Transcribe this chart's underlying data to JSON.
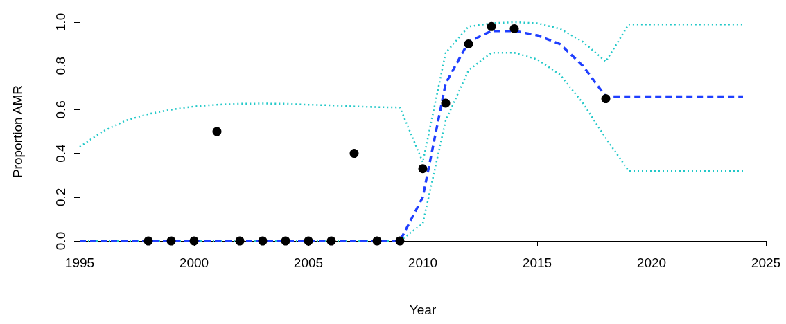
{
  "chart_data": {
    "type": "scatter",
    "xlabel": "Year",
    "ylabel": "Proportion AMR",
    "xlim": [
      1995,
      2025
    ],
    "xticks": [
      1995,
      2000,
      2005,
      2010,
      2015,
      2020,
      2025
    ],
    "ylim": [
      0,
      1
    ],
    "yticks": [
      {
        "value": 0,
        "label": "0.0"
      },
      {
        "value": 0.2,
        "label": "0.2"
      },
      {
        "value": 0.4,
        "label": "0.4"
      },
      {
        "value": 0.6,
        "label": "0.6"
      },
      {
        "value": 0.8,
        "label": "0.8"
      },
      {
        "value": 1,
        "label": "1.0"
      }
    ],
    "grid": false,
    "series": [
      {
        "type": "line",
        "line_style": "dotted",
        "marker": "none",
        "color": "#22c8c8",
        "x": [
          1995,
          1996,
          1997,
          1998,
          1999,
          2000,
          2001,
          2002,
          2003,
          2004,
          2005,
          2006,
          2007,
          2008,
          2009,
          2010,
          2011,
          2012,
          2013,
          2014,
          2015,
          2016,
          2017,
          2018,
          2019,
          2020,
          2021,
          2022,
          2023,
          2024
        ],
        "values": [
          0.43,
          0.5,
          0.55,
          0.58,
          0.6,
          0.615,
          0.623,
          0.627,
          0.628,
          0.627,
          0.623,
          0.62,
          0.615,
          0.612,
          0.61,
          0.36,
          0.86,
          0.98,
          0.995,
          1.0,
          0.995,
          0.97,
          0.91,
          0.82,
          0.99,
          0.99,
          0.99,
          0.99,
          0.99,
          0.99
        ]
      },
      {
        "type": "line",
        "line_style": "dotted",
        "marker": "none",
        "color": "#22c8c8",
        "x": [
          1995,
          1996,
          1997,
          1998,
          1999,
          2000,
          2001,
          2002,
          2003,
          2004,
          2005,
          2006,
          2007,
          2008,
          2009,
          2010,
          2011,
          2012,
          2013,
          2014,
          2015,
          2016,
          2017,
          2018,
          2019,
          2020,
          2021,
          2022,
          2023,
          2024
        ],
        "values": [
          0,
          0,
          0,
          0,
          0,
          0,
          0,
          0,
          0,
          0,
          0,
          0,
          0,
          0,
          0,
          0.08,
          0.55,
          0.78,
          0.86,
          0.86,
          0.83,
          0.76,
          0.63,
          0.47,
          0.32,
          0.32,
          0.32,
          0.32,
          0.32,
          0.32
        ]
      },
      {
        "type": "line",
        "line_style": "dashed",
        "marker": "none",
        "color": "#1f3fff",
        "x": [
          1995,
          1996,
          1997,
          1998,
          1999,
          2000,
          2001,
          2002,
          2003,
          2004,
          2005,
          2006,
          2007,
          2008,
          2009,
          2010,
          2011,
          2012,
          2013,
          2014,
          2015,
          2016,
          2017,
          2018,
          2019,
          2020,
          2021,
          2022,
          2023,
          2024
        ],
        "values": [
          0,
          0,
          0,
          0,
          0,
          0,
          0,
          0,
          0,
          0,
          0,
          0,
          0,
          0,
          0,
          0.2,
          0.72,
          0.91,
          0.96,
          0.96,
          0.94,
          0.9,
          0.8,
          0.66,
          0.66,
          0.66,
          0.66,
          0.66,
          0.66,
          0.66
        ]
      },
      {
        "marker": "circle",
        "color": "#000000",
        "x": [
          1998,
          1999,
          2000,
          2001,
          2002,
          2003,
          2004,
          2005,
          2006,
          2007,
          2008,
          2009,
          2010,
          2011,
          2012,
          2013,
          2014,
          2018
        ],
        "values": [
          0,
          0,
          0,
          0.5,
          0,
          0,
          0,
          0,
          0,
          0.4,
          0,
          0,
          0.33,
          0.63,
          0.9,
          0.98,
          0.97,
          0.65
        ]
      }
    ]
  }
}
